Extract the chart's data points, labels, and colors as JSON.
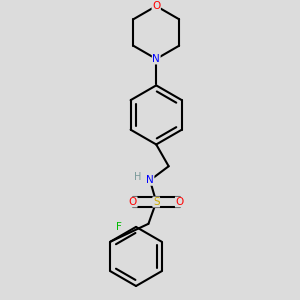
{
  "background_color": "#dcdcdc",
  "atom_colors": {
    "C": "#000000",
    "N": "#0000ff",
    "O": "#ff0000",
    "S": "#ccaa00",
    "F": "#00bb00",
    "H": "#7a9a9a"
  },
  "bond_color": "#000000",
  "bond_width": 1.5
}
